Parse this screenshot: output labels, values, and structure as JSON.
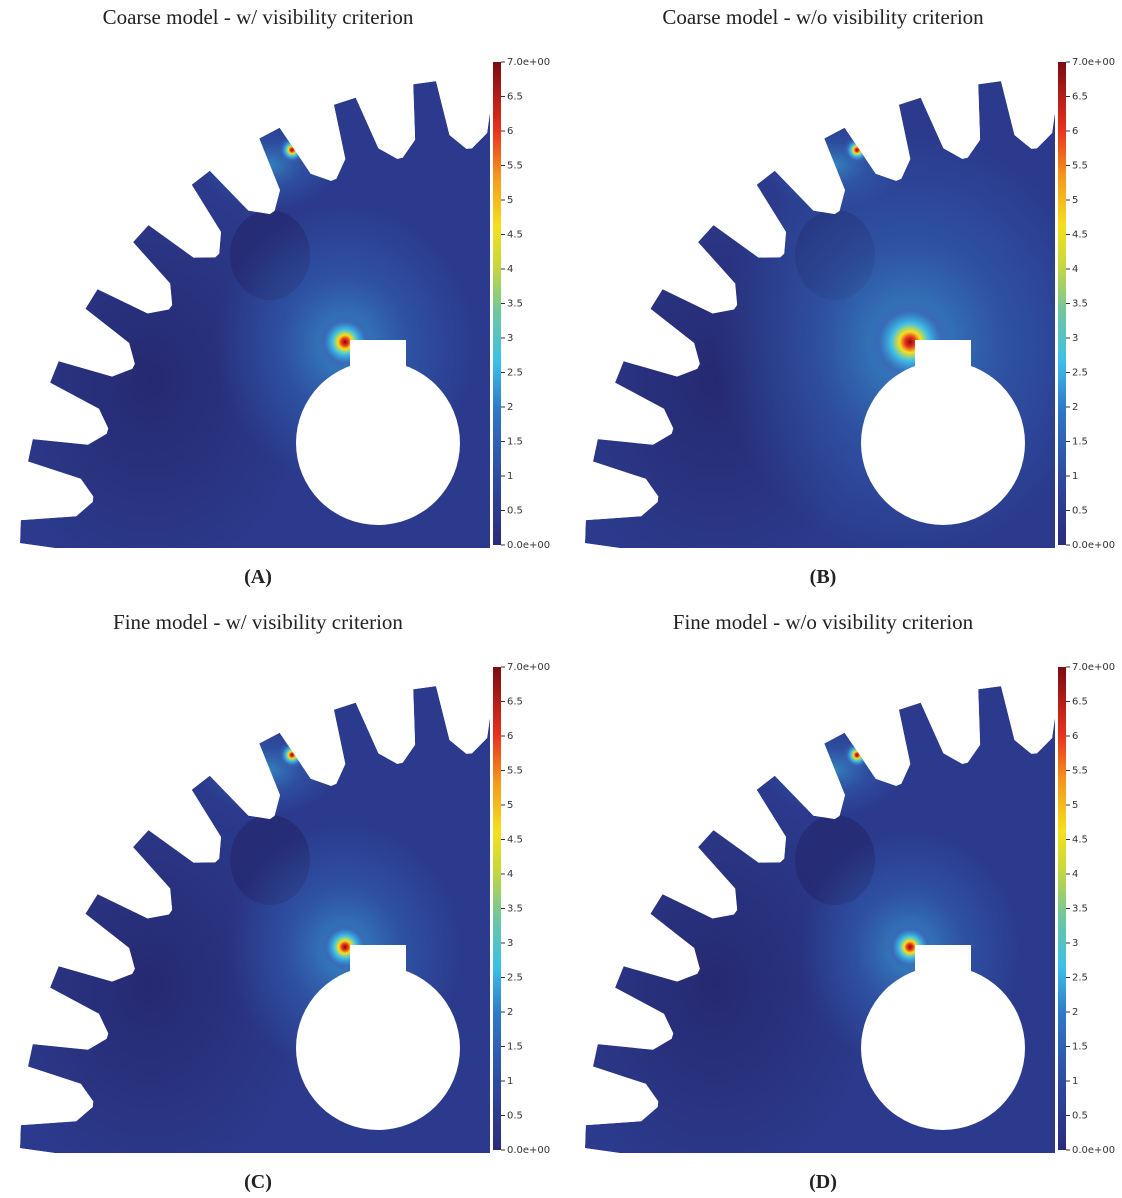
{
  "panels": [
    {
      "title": "Coarse model - w/ visibility criterion",
      "label": "(A)",
      "colorbar": {
        "ticks": [
          {
            "value": 0,
            "label": "0.0e+00"
          },
          0.5,
          1,
          1.5,
          2,
          2.5,
          3,
          3.5,
          4,
          4.5,
          5,
          5.5,
          6,
          6.5,
          {
            "value": 7,
            "label": "7.0e+00"
          }
        ]
      }
    },
    {
      "title": "Coarse model - w/o visibility criterion",
      "label": "(B)",
      "colorbar": {
        "ticks": [
          {
            "value": 0,
            "label": "0.0e+00"
          },
          0.5,
          1,
          1.5,
          2,
          2.5,
          3,
          3.5,
          4,
          4.5,
          5,
          5.5,
          6,
          6.5,
          {
            "value": 7,
            "label": "7.0e+00"
          }
        ]
      }
    },
    {
      "title": "Fine model - w/ visibility criterion",
      "label": "(C)",
      "colorbar": {
        "ticks": [
          {
            "value": 0,
            "label": "0.0e+00"
          },
          0.5,
          1,
          1.5,
          2,
          2.5,
          3,
          3.5,
          4,
          4.5,
          5,
          5.5,
          6,
          6.5,
          {
            "value": 7,
            "label": "7.0e+00"
          }
        ]
      }
    },
    {
      "title": "Fine model - w/o visibility criterion",
      "label": "(D)",
      "colorbar": {
        "ticks": [
          {
            "value": 0,
            "label": "0.0e+00"
          },
          0.5,
          1,
          1.5,
          2,
          2.5,
          3,
          3.5,
          4,
          4.5,
          5,
          5.5,
          6,
          6.5,
          {
            "value": 7,
            "label": "7.0e+00"
          }
        ]
      }
    }
  ]
}
